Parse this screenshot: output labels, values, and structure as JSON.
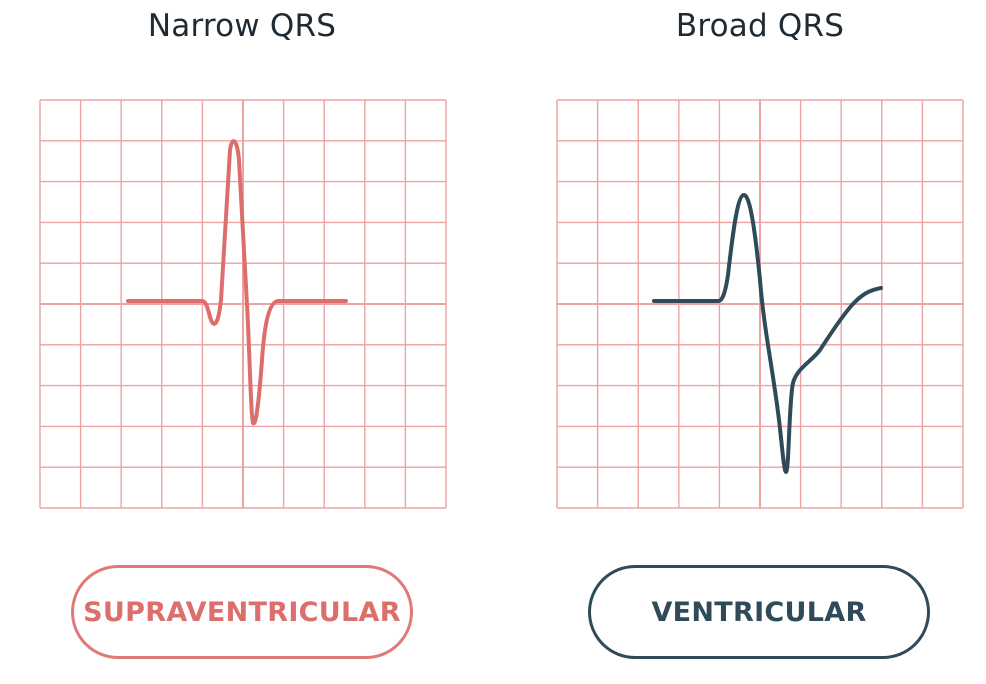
{
  "panels": [
    {
      "title": "Narrow QRS",
      "button_label": "SUPRAVENTRICULAR",
      "trace_color": "#dc6e6c",
      "grid_color": "#eda3a1"
    },
    {
      "title": "Broad QRS",
      "button_label": "VENTRICULAR",
      "trace_color": "#2f4b5a",
      "grid_color": "#eda3a1"
    }
  ]
}
